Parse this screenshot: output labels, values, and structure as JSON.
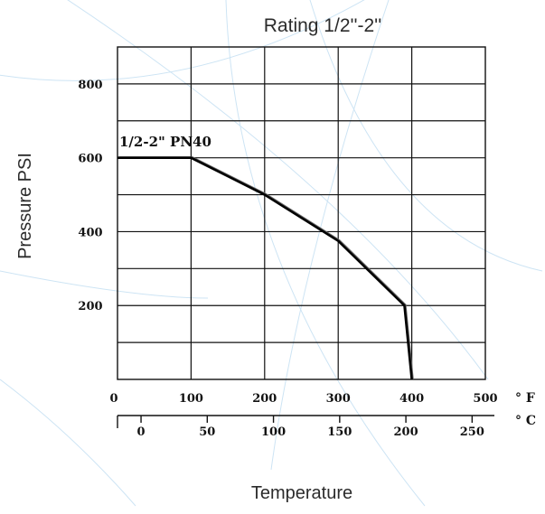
{
  "chart_data": {
    "type": "line",
    "title": "Rating 1/2''-2''",
    "xlabel": "Temperature",
    "ylabel": "Pressure PSI",
    "x_unit_primary": "° F",
    "x_unit_secondary": "° C",
    "xlim": [
      0,
      500
    ],
    "ylim": [
      0,
      900
    ],
    "grid": true,
    "x_ticks_primary": [
      "0",
      "100",
      "200",
      "300",
      "400",
      "500"
    ],
    "x_ticks_secondary": [
      "0",
      "50",
      "100",
      "150",
      "200",
      "250"
    ],
    "y_ticks": [
      "200",
      "400",
      "600",
      "800"
    ],
    "series": [
      {
        "name": "1/2-2\" PN40",
        "x": [
          0,
          100,
          200,
          300,
          390,
          400
        ],
        "y": [
          600,
          600,
          500,
          375,
          200,
          0
        ]
      }
    ]
  }
}
